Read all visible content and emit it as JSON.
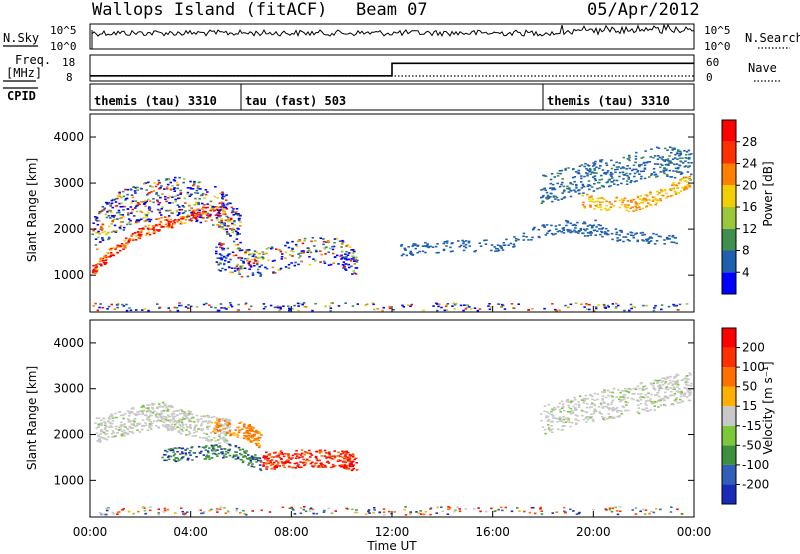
{
  "header": {
    "station": "Wallops Island (fitACF)",
    "beam": "Beam 07",
    "date": "05/Apr/2012"
  },
  "top_panels": {
    "nsky_label": "N.Sky",
    "nsearch_label": "N.Search",
    "noise_tick_top": "10^5",
    "noise_tick_bottom": "10^0",
    "freq_label": "Freq.",
    "freq_unit": "[MHz]",
    "freq_tick_top": "18",
    "freq_tick_bottom": "8",
    "nave_label": "Nave",
    "nave_tick_top": "60",
    "nave_tick_bottom": "0",
    "cpid_label": "CPID",
    "cpid_segments": [
      {
        "label": "themis (tau) 3310",
        "start_hour": 0,
        "end_hour": 6
      },
      {
        "label": "tau (fast) 503",
        "start_hour": 6,
        "end_hour": 18
      },
      {
        "label": "themis (tau) 3310",
        "start_hour": 18,
        "end_hour": 24
      }
    ],
    "freq_step": {
      "before_mhz": 10,
      "after_mhz": 14.8,
      "step_hour": 12
    }
  },
  "chart_data": [
    {
      "type": "heatmap",
      "name": "power",
      "ylabel": "Slant Range [km]",
      "ylim": [
        200,
        4500
      ],
      "yticks": [
        1000,
        2000,
        3000,
        4000
      ],
      "xlim": [
        0,
        24
      ],
      "colorbar_label": "Power [dB]",
      "colorbar_ticks": [
        "4",
        "8",
        "12",
        "16",
        "20",
        "24",
        "28"
      ],
      "colorbar_colors": [
        "#0000ff",
        "#1f5fb0",
        "#3f8f4f",
        "#9ac83a",
        "#f0d000",
        "#ff8000",
        "#ff3000",
        "#ff0000"
      ]
    },
    {
      "type": "heatmap",
      "name": "velocity",
      "ylabel": "Slant Range [km]",
      "ylim": [
        200,
        4500
      ],
      "yticks": [
        1000,
        2000,
        3000,
        4000
      ],
      "xlim": [
        0,
        24
      ],
      "xlabel": "Time UT",
      "xticks": [
        "00:00",
        "04:00",
        "08:00",
        "12:00",
        "16:00",
        "20:00",
        "00:00"
      ],
      "colorbar_label": "Velocity [m s⁻¹]",
      "colorbar_ticks": [
        "200",
        "100",
        "50",
        "15",
        "-15",
        "-50",
        "-100",
        "-200"
      ],
      "colorbar_colors": [
        "#1a2ab8",
        "#2f5fb8",
        "#3c8f3c",
        "#7cc83a",
        "#c8c8c8",
        "#ffb000",
        "#ff7000",
        "#ff3000",
        "#ff0000"
      ]
    }
  ]
}
